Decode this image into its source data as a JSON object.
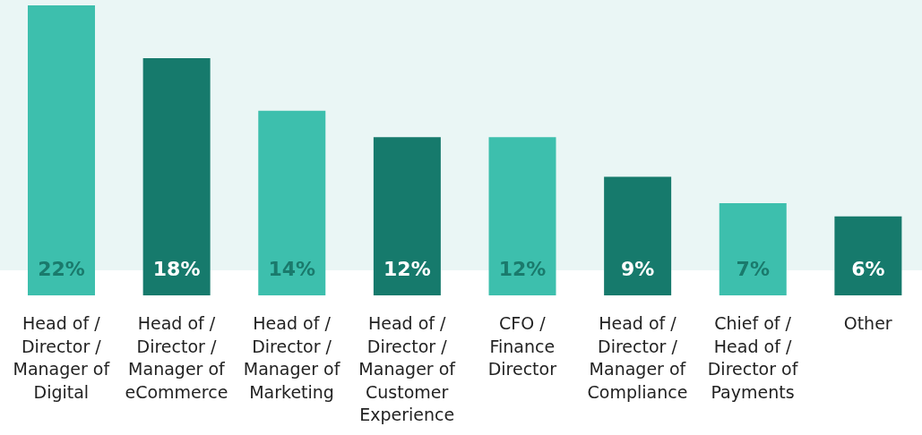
{
  "chart_data": {
    "type": "bar",
    "categories": [
      "Head of / Director / Manager of Digital",
      "Head of / Director / Manager of eCommerce",
      "Head of / Director / Manager of Marketing",
      "Head of / Director / Manager of Customer Experience",
      "CFO / Finance Director",
      "Head of / Director / Manager of Compliance",
      "Chief of / Head of / Director of Payments",
      "Other"
    ],
    "values": [
      22,
      18,
      14,
      12,
      12,
      9,
      7,
      6
    ],
    "value_labels": [
      "22%",
      "18%",
      "14%",
      "12%",
      "12%",
      "9%",
      "7%",
      "6%"
    ],
    "colors": [
      "#3dbfad",
      "#167a6c",
      "#3dbfad",
      "#167a6c",
      "#3dbfad",
      "#167a6c",
      "#3dbfad",
      "#167a6c"
    ]
  }
}
